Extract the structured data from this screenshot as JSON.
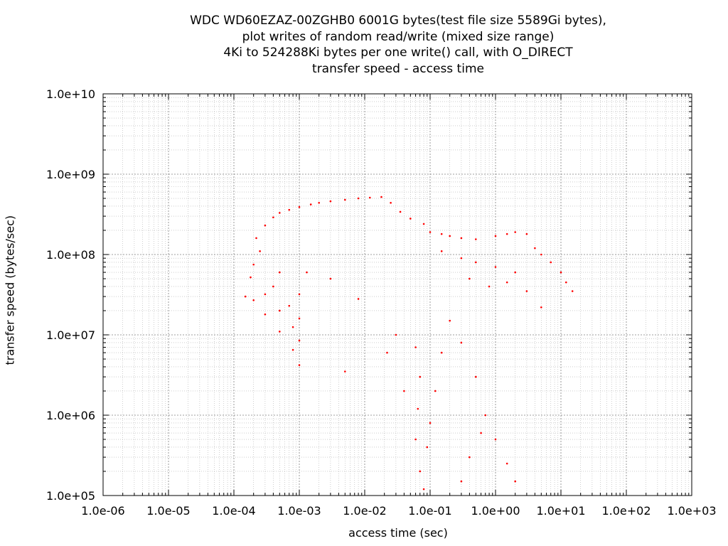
{
  "chart_data": {
    "type": "scatter",
    "title_lines": [
      "WDC WD60EZAZ-00ZGHB0 6001G bytes(test file size 5589Gi bytes),",
      "plot writes of random read/write (mixed size range)",
      "4Ki to 524288Ki bytes per one write() call, with O_DIRECT",
      "transfer speed - access time"
    ],
    "xlabel": "access time (sec)",
    "ylabel": "transfer speed (bytes/sec)",
    "x_scale": "log",
    "y_scale": "log",
    "xlim": [
      1e-06,
      1000
    ],
    "ylim": [
      100000,
      10000000000
    ],
    "x_ticks": [
      "1.0e-06",
      "1.0e-05",
      "1.0e-04",
      "1.0e-03",
      "1.0e-02",
      "1.0e-01",
      "1.0e+00",
      "1.0e+01",
      "1.0e+02",
      "1.0e+03"
    ],
    "y_ticks": [
      "1.0e+05",
      "1.0e+06",
      "1.0e+07",
      "1.0e+08",
      "1.0e+09",
      "1.0e+10"
    ],
    "grid": true,
    "marker_color": "#ff0000",
    "series": [
      {
        "points": [
          [
            0.00015,
            30000000.0
          ],
          [
            0.0002,
            27000000.0
          ],
          [
            0.0003,
            18000000.0
          ],
          [
            0.0005,
            11000000.0
          ],
          [
            0.0008,
            6500000.0
          ],
          [
            0.001,
            4200000.0
          ],
          [
            0.00018,
            52000000.0
          ],
          [
            0.0003,
            32000000.0
          ],
          [
            0.0005,
            20000000.0
          ],
          [
            0.0008,
            12500000.0
          ],
          [
            0.001,
            8500000.0
          ],
          [
            0.0002,
            75000000.0
          ],
          [
            0.0004,
            40000000.0
          ],
          [
            0.0007,
            23000000.0
          ],
          [
            0.001,
            16000000.0
          ],
          [
            0.00025,
            110000000.0
          ],
          [
            0.0005,
            60000000.0
          ],
          [
            0.001,
            32000000.0
          ],
          [
            0.00022,
            160000000.0
          ],
          [
            0.0003,
            230000000.0
          ],
          [
            0.0004,
            290000000.0
          ],
          [
            0.0005,
            330000000.0
          ],
          [
            0.0007,
            360000000.0
          ],
          [
            0.001,
            390000000.0
          ],
          [
            0.0015,
            420000000.0
          ],
          [
            0.002,
            440000000.0
          ],
          [
            0.003,
            460000000.0
          ],
          [
            0.005,
            480000000.0
          ],
          [
            0.008,
            500000000.0
          ],
          [
            0.012,
            510000000.0
          ],
          [
            0.018,
            520000000.0
          ],
          [
            0.025,
            440000000.0
          ],
          [
            0.035,
            340000000.0
          ],
          [
            0.05,
            280000000.0
          ],
          [
            0.08,
            240000000.0
          ],
          [
            0.1,
            190000000.0
          ],
          [
            0.15,
            180000000.0
          ],
          [
            0.2,
            170000000.0
          ],
          [
            0.3,
            160000000.0
          ],
          [
            0.5,
            155000000.0
          ],
          [
            1.0,
            170000000.0
          ],
          [
            1.5,
            180000000.0
          ],
          [
            2.0,
            190000000.0
          ],
          [
            3.0,
            180000000.0
          ],
          [
            4.0,
            120000000.0
          ],
          [
            5.0,
            100000000.0
          ],
          [
            7.0,
            80000000.0
          ],
          [
            10.0,
            60000000.0
          ],
          [
            12.0,
            45000000.0
          ],
          [
            15.0,
            35000000.0
          ],
          [
            0.15,
            110000000.0
          ],
          [
            0.3,
            90000000.0
          ],
          [
            0.5,
            80000000.0
          ],
          [
            1.0,
            70000000.0
          ],
          [
            2.0,
            60000000.0
          ],
          [
            0.4,
            50000000.0
          ],
          [
            0.8,
            40000000.0
          ],
          [
            1.5,
            45000000.0
          ],
          [
            3.0,
            35000000.0
          ],
          [
            5.0,
            22000000.0
          ],
          [
            0.06,
            7000000.0
          ],
          [
            0.07,
            3000000.0
          ],
          [
            0.065,
            1200000.0
          ],
          [
            0.06,
            500000.0
          ],
          [
            0.07,
            200000.0
          ],
          [
            0.08,
            120000.0
          ],
          [
            0.09,
            400000.0
          ],
          [
            0.1,
            800000.0
          ],
          [
            0.12,
            2000000.0
          ],
          [
            0.15,
            6000000.0
          ],
          [
            0.2,
            15000000.0
          ],
          [
            0.3,
            8000000.0
          ],
          [
            0.5,
            3000000.0
          ],
          [
            0.7,
            1000000.0
          ],
          [
            1.0,
            500000.0
          ],
          [
            1.5,
            250000.0
          ],
          [
            2.0,
            150000.0
          ],
          [
            0.3,
            150000.0
          ],
          [
            0.4,
            300000.0
          ],
          [
            0.6,
            600000.0
          ],
          [
            0.04,
            2000000.0
          ],
          [
            0.03,
            10000000.0
          ],
          [
            0.022,
            6000000.0
          ],
          [
            0.008,
            28000000.0
          ],
          [
            0.003,
            50000000.0
          ],
          [
            0.005,
            3500000.0
          ],
          [
            0.0013,
            60000000.0
          ]
        ]
      }
    ]
  }
}
